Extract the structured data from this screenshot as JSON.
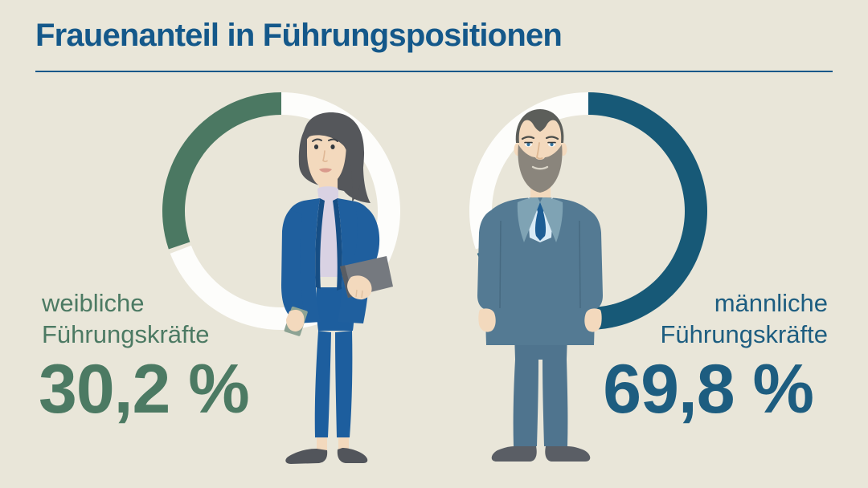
{
  "title": "Frauenanteil in Führungspositionen",
  "colors": {
    "bg": "#e9e6d9",
    "title_blue": "#14588a",
    "female_green": "#4c7a63",
    "male_teal": "#1d5d80",
    "ring_green": "#4b7862",
    "ring_teal": "#175977",
    "ring_white": "#fdfdfb"
  },
  "chart_data": {
    "type": "pie",
    "subtype": "donut-rings",
    "title": "Frauenanteil in Führungspositionen",
    "legend_position": "none",
    "rings": [
      {
        "id": "female",
        "figure": "businesswoman",
        "label_lines": [
          "weibliche",
          "Führungskräfte"
        ],
        "value_pct": 30.2,
        "value_label": "30,2 %",
        "segment_color": "#4b7862",
        "remainder_color": "#fdfdfb",
        "sweep": "ccw"
      },
      {
        "id": "male",
        "figure": "businessman",
        "label_lines": [
          "männliche",
          "Führungskräfte"
        ],
        "value_pct": 69.8,
        "value_label": "69,8 %",
        "segment_color": "#175977",
        "remainder_color": "#fdfdfb",
        "sweep": "cw"
      }
    ]
  }
}
